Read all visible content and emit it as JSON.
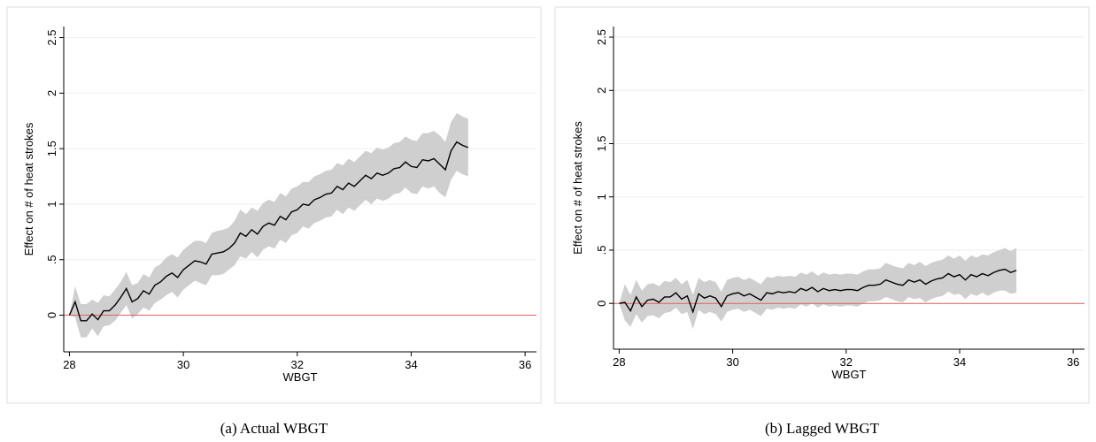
{
  "colors": {
    "band": "#cfcfcf",
    "line": "#000000",
    "zero_line": "#e06060",
    "grid": "#eeeeee",
    "frame": "#dddddd"
  },
  "chart_data": [
    {
      "type": "line",
      "caption": "(a)  Actual WBGT",
      "xlabel": "WBGT",
      "ylabel": "Effect on # of heat strokes",
      "xlim": [
        27.9,
        36.2
      ],
      "ylim": [
        -0.33,
        2.6
      ],
      "xticks": [
        28,
        30,
        32,
        34,
        36
      ],
      "xtick_labels": [
        "28",
        "30",
        "32",
        "34",
        "36"
      ],
      "yticks": [
        0,
        0.5,
        1,
        1.5,
        2,
        2.5
      ],
      "ytick_labels": [
        "0",
        ".5",
        "1",
        "1.5",
        "2",
        "2.5"
      ],
      "grid": true,
      "reference_line_y": 0,
      "series": [
        {
          "x": [
            28.0,
            28.1,
            28.2,
            28.3,
            28.4,
            28.5,
            28.6,
            28.7,
            28.8,
            28.9,
            29.0,
            29.1,
            29.2,
            29.3,
            29.4,
            29.5,
            29.6,
            29.7,
            29.8,
            29.9,
            30.0,
            30.1,
            30.2,
            30.3,
            30.4,
            30.5,
            30.6,
            30.7,
            30.8,
            30.9,
            31.0,
            31.1,
            31.2,
            31.3,
            31.4,
            31.5,
            31.6,
            31.7,
            31.8,
            31.9,
            32.0,
            32.1,
            32.2,
            32.3,
            32.4,
            32.5,
            32.6,
            32.7,
            32.8,
            32.9,
            33.0,
            33.1,
            33.2,
            33.3,
            33.4,
            33.5,
            33.6,
            33.7,
            33.8,
            33.9,
            34.0,
            34.1,
            34.2,
            34.3,
            34.4,
            34.5,
            34.6,
            34.7,
            34.8,
            34.9,
            35.0
          ],
          "y": [
            0.0,
            0.12,
            -0.05,
            -0.05,
            0.01,
            -0.04,
            0.04,
            0.04,
            0.09,
            0.16,
            0.24,
            0.12,
            0.15,
            0.22,
            0.19,
            0.27,
            0.3,
            0.35,
            0.38,
            0.34,
            0.41,
            0.45,
            0.49,
            0.48,
            0.46,
            0.55,
            0.56,
            0.57,
            0.6,
            0.65,
            0.74,
            0.71,
            0.77,
            0.73,
            0.8,
            0.83,
            0.81,
            0.89,
            0.86,
            0.93,
            0.95,
            1.0,
            0.99,
            1.04,
            1.06,
            1.09,
            1.1,
            1.16,
            1.13,
            1.19,
            1.16,
            1.21,
            1.26,
            1.23,
            1.28,
            1.26,
            1.28,
            1.32,
            1.33,
            1.38,
            1.34,
            1.33,
            1.4,
            1.39,
            1.41,
            1.36,
            1.31,
            1.48,
            1.56,
            1.53,
            1.51
          ],
          "lower": [
            0.0,
            -0.02,
            -0.2,
            -0.2,
            -0.12,
            -0.19,
            -0.1,
            -0.09,
            -0.05,
            0.02,
            0.09,
            -0.03,
            0.01,
            0.07,
            0.04,
            0.11,
            0.14,
            0.18,
            0.21,
            0.16,
            0.23,
            0.27,
            0.31,
            0.29,
            0.27,
            0.36,
            0.36,
            0.37,
            0.41,
            0.45,
            0.53,
            0.51,
            0.57,
            0.52,
            0.59,
            0.62,
            0.6,
            0.68,
            0.65,
            0.72,
            0.74,
            0.8,
            0.78,
            0.83,
            0.85,
            0.88,
            0.89,
            0.95,
            0.91,
            0.97,
            0.94,
            0.99,
            1.04,
            1.0,
            1.05,
            1.03,
            1.05,
            1.09,
            1.1,
            1.15,
            1.1,
            1.09,
            1.16,
            1.14,
            1.16,
            1.1,
            1.06,
            1.22,
            1.3,
            1.27,
            1.25
          ],
          "upper": [
            0.0,
            0.26,
            0.1,
            0.1,
            0.14,
            0.11,
            0.18,
            0.17,
            0.23,
            0.3,
            0.39,
            0.27,
            0.29,
            0.37,
            0.34,
            0.43,
            0.46,
            0.52,
            0.55,
            0.52,
            0.59,
            0.63,
            0.67,
            0.67,
            0.65,
            0.74,
            0.76,
            0.77,
            0.79,
            0.85,
            0.95,
            0.91,
            0.97,
            0.94,
            1.01,
            1.04,
            1.02,
            1.1,
            1.07,
            1.14,
            1.16,
            1.2,
            1.2,
            1.25,
            1.27,
            1.3,
            1.31,
            1.37,
            1.35,
            1.41,
            1.38,
            1.43,
            1.48,
            1.46,
            1.51,
            1.49,
            1.51,
            1.55,
            1.56,
            1.61,
            1.58,
            1.57,
            1.64,
            1.64,
            1.66,
            1.62,
            1.56,
            1.74,
            1.82,
            1.79,
            1.77
          ]
        }
      ]
    },
    {
      "type": "line",
      "caption": "(b)  Lagged WBGT",
      "xlabel": "WBGT",
      "ylabel": "Effect on # of heat strokes",
      "xlim": [
        27.9,
        36.2
      ],
      "ylim": [
        -0.43,
        2.6
      ],
      "xticks": [
        28,
        30,
        32,
        34,
        36
      ],
      "xtick_labels": [
        "28",
        "30",
        "32",
        "34",
        "36"
      ],
      "yticks": [
        0,
        0.5,
        1,
        1.5,
        2,
        2.5
      ],
      "ytick_labels": [
        "0",
        ".5",
        "1",
        "1.5",
        "2",
        "2.5"
      ],
      "grid": true,
      "reference_line_y": 0,
      "series": [
        {
          "x": [
            28.0,
            28.1,
            28.2,
            28.3,
            28.4,
            28.5,
            28.6,
            28.7,
            28.8,
            28.9,
            29.0,
            29.1,
            29.2,
            29.3,
            29.4,
            29.5,
            29.6,
            29.7,
            29.8,
            29.9,
            30.0,
            30.1,
            30.2,
            30.3,
            30.4,
            30.5,
            30.6,
            30.7,
            30.8,
            30.9,
            31.0,
            31.1,
            31.2,
            31.3,
            31.4,
            31.5,
            31.6,
            31.7,
            31.8,
            31.9,
            32.0,
            32.1,
            32.2,
            32.3,
            32.4,
            32.5,
            32.6,
            32.7,
            32.8,
            32.9,
            33.0,
            33.1,
            33.2,
            33.3,
            33.4,
            33.5,
            33.6,
            33.7,
            33.8,
            33.9,
            34.0,
            34.1,
            34.2,
            34.3,
            34.4,
            34.5,
            34.6,
            34.7,
            34.8,
            34.9,
            35.0
          ],
          "y": [
            0.0,
            0.01,
            -0.07,
            0.06,
            -0.03,
            0.03,
            0.04,
            0.01,
            0.06,
            0.06,
            0.1,
            0.04,
            0.07,
            -0.08,
            0.09,
            0.05,
            0.07,
            0.05,
            -0.03,
            0.07,
            0.09,
            0.1,
            0.07,
            0.09,
            0.06,
            0.03,
            0.1,
            0.09,
            0.11,
            0.1,
            0.11,
            0.1,
            0.14,
            0.12,
            0.15,
            0.11,
            0.14,
            0.12,
            0.13,
            0.12,
            0.13,
            0.13,
            0.12,
            0.15,
            0.17,
            0.17,
            0.18,
            0.22,
            0.2,
            0.18,
            0.17,
            0.22,
            0.2,
            0.22,
            0.18,
            0.21,
            0.23,
            0.24,
            0.28,
            0.25,
            0.27,
            0.22,
            0.27,
            0.25,
            0.28,
            0.26,
            0.29,
            0.31,
            0.32,
            0.29,
            0.31
          ],
          "lower": [
            0.0,
            -0.16,
            -0.22,
            -0.1,
            -0.18,
            -0.12,
            -0.11,
            -0.14,
            -0.09,
            -0.08,
            -0.04,
            -0.1,
            -0.08,
            -0.24,
            -0.06,
            -0.1,
            -0.08,
            -0.1,
            -0.17,
            -0.08,
            -0.06,
            -0.05,
            -0.08,
            -0.06,
            -0.09,
            -0.12,
            -0.05,
            -0.06,
            -0.04,
            -0.05,
            -0.04,
            -0.05,
            -0.01,
            -0.03,
            0.0,
            -0.04,
            -0.01,
            -0.03,
            -0.02,
            -0.03,
            -0.02,
            -0.02,
            -0.03,
            0.0,
            0.02,
            0.02,
            0.03,
            0.06,
            0.04,
            0.02,
            0.01,
            0.06,
            0.04,
            0.05,
            0.01,
            0.04,
            0.06,
            0.07,
            0.11,
            0.08,
            0.09,
            0.04,
            0.09,
            0.07,
            0.1,
            0.07,
            0.1,
            0.12,
            0.12,
            0.09,
            0.1
          ],
          "upper": [
            0.0,
            0.18,
            0.08,
            0.22,
            0.12,
            0.18,
            0.19,
            0.16,
            0.21,
            0.2,
            0.24,
            0.18,
            0.22,
            0.08,
            0.24,
            0.2,
            0.22,
            0.2,
            0.11,
            0.22,
            0.24,
            0.25,
            0.22,
            0.24,
            0.21,
            0.18,
            0.25,
            0.24,
            0.26,
            0.25,
            0.26,
            0.25,
            0.29,
            0.27,
            0.3,
            0.26,
            0.29,
            0.27,
            0.28,
            0.27,
            0.28,
            0.28,
            0.27,
            0.3,
            0.32,
            0.32,
            0.33,
            0.38,
            0.36,
            0.34,
            0.33,
            0.38,
            0.36,
            0.39,
            0.35,
            0.38,
            0.4,
            0.41,
            0.45,
            0.42,
            0.45,
            0.4,
            0.45,
            0.43,
            0.46,
            0.45,
            0.48,
            0.5,
            0.52,
            0.49,
            0.52
          ]
        }
      ]
    }
  ]
}
